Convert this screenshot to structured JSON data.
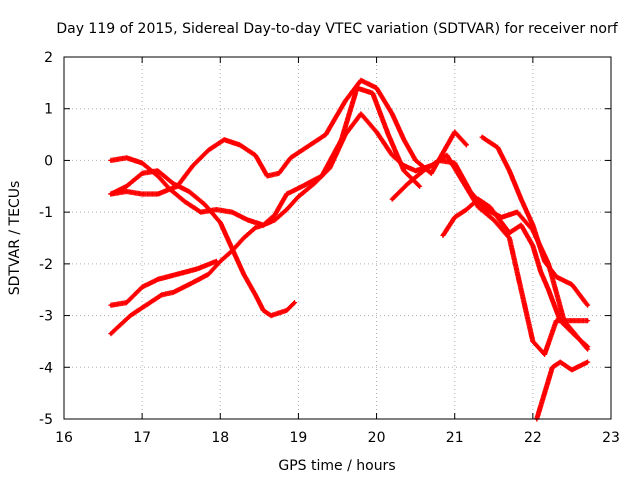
{
  "chart_data": {
    "type": "scatter",
    "title": "Day 119 of 2015, Sidereal Day-to-day VTEC variation (SDTVAR) for receiver norf",
    "xlabel": "GPS time / hours",
    "ylabel": "SDTVAR / TECUs",
    "xlim": [
      16,
      23
    ],
    "ylim": [
      -5,
      2
    ],
    "xticks": [
      16,
      17,
      18,
      19,
      20,
      21,
      22,
      23
    ],
    "yticks": [
      -5,
      -4,
      -3,
      -2,
      -1,
      0,
      1,
      2
    ],
    "xtick_labels": [
      "16",
      "17",
      "18",
      "19",
      "20",
      "21",
      "22",
      "23"
    ],
    "ytick_labels": [
      "-5",
      "-4",
      "-3",
      "-2",
      "-1",
      "0",
      "1",
      "2"
    ],
    "grid": true,
    "marker": "+",
    "marker_color": "#ff0000",
    "series": [
      {
        "name": "s1",
        "x": [
          16.6,
          16.8,
          17.0,
          17.2,
          17.35,
          17.55,
          17.75,
          17.95,
          18.15,
          18.35,
          18.55,
          18.7,
          18.85,
          19.0,
          19.2,
          19.4,
          19.6,
          19.8,
          20.0,
          20.2,
          20.35,
          20.5,
          20.7,
          20.9,
          21.1,
          21.3,
          21.5,
          21.7,
          21.85,
          22.0,
          22.15,
          22.3,
          22.5,
          22.7
        ],
        "y": [
          0.0,
          0.05,
          -0.05,
          -0.3,
          -0.55,
          -0.8,
          -1.0,
          -0.95,
          -1.0,
          -1.15,
          -1.25,
          -1.15,
          -0.95,
          -0.7,
          -0.45,
          -0.15,
          0.5,
          0.9,
          0.55,
          0.1,
          -0.1,
          -0.2,
          -0.1,
          0.1,
          -0.4,
          -0.9,
          -1.15,
          -1.5,
          -2.5,
          -3.5,
          -3.75,
          -3.1,
          -3.1,
          -3.1
        ]
      },
      {
        "name": "s2",
        "x": [
          16.6,
          16.8,
          17.0,
          17.2,
          17.45,
          17.65,
          17.85,
          18.05,
          18.25,
          18.45,
          18.6,
          18.75,
          18.9,
          19.1,
          19.35,
          19.6,
          19.8,
          20.0,
          20.2,
          20.35,
          20.5,
          20.7,
          20.85,
          21.0,
          21.15
        ],
        "y": [
          -0.65,
          -0.6,
          -0.65,
          -0.65,
          -0.5,
          -0.1,
          0.2,
          0.4,
          0.3,
          0.1,
          -0.3,
          -0.25,
          0.05,
          0.25,
          0.5,
          1.15,
          1.55,
          1.4,
          0.9,
          0.4,
          0.0,
          -0.25,
          0.15,
          0.55,
          0.3
        ]
      },
      {
        "name": "s3",
        "x": [
          16.6,
          16.8,
          17.0,
          17.2,
          17.4,
          17.6,
          17.8,
          18.0,
          18.15,
          18.3,
          18.45,
          18.55,
          18.65,
          18.75,
          18.85,
          18.95
        ],
        "y": [
          -0.65,
          -0.5,
          -0.25,
          -0.2,
          -0.45,
          -0.6,
          -0.85,
          -1.2,
          -1.7,
          -2.2,
          -2.6,
          -2.9,
          -3.0,
          -2.95,
          -2.9,
          -2.75
        ]
      },
      {
        "name": "s4",
        "x": [
          16.6,
          16.8,
          17.0,
          17.2,
          17.45,
          17.7,
          17.95
        ],
        "y": [
          -2.8,
          -2.75,
          -2.45,
          -2.3,
          -2.2,
          -2.1,
          -1.95
        ]
      },
      {
        "name": "s5",
        "x": [
          16.6,
          16.85,
          17.05,
          17.25,
          17.4,
          17.6,
          17.85,
          18.0,
          18.15,
          18.3,
          18.45,
          18.55,
          18.7,
          18.85,
          19.05,
          19.3,
          19.55,
          19.75,
          19.95,
          20.15,
          20.35,
          20.55
        ],
        "y": [
          -3.35,
          -3.0,
          -2.8,
          -2.6,
          -2.55,
          -2.4,
          -2.2,
          -1.95,
          -1.75,
          -1.5,
          -1.3,
          -1.25,
          -1.05,
          -0.65,
          -0.5,
          -0.3,
          0.4,
          1.4,
          1.3,
          0.5,
          -0.2,
          -0.5
        ]
      },
      {
        "name": "s6",
        "x": [
          20.2,
          20.4,
          20.6,
          20.8,
          21.0,
          21.2,
          21.4,
          21.6,
          21.8,
          22.0,
          22.2,
          22.4,
          22.7
        ],
        "y": [
          -0.75,
          -0.45,
          -0.2,
          0.0,
          -0.05,
          -0.6,
          -0.95,
          -1.1,
          -1.0,
          -1.35,
          -2.0,
          -3.1,
          -3.65
        ]
      },
      {
        "name": "s7",
        "x": [
          20.85,
          21.0,
          21.15,
          21.3,
          21.45,
          21.55,
          21.7,
          21.85,
          22.0,
          22.1,
          22.2,
          22.35,
          22.55,
          22.7
        ],
        "y": [
          -1.45,
          -1.1,
          -0.95,
          -0.75,
          -0.9,
          -1.1,
          -1.4,
          -1.25,
          -1.65,
          -2.15,
          -2.5,
          -3.1,
          -3.4,
          -3.6
        ]
      },
      {
        "name": "s8",
        "x": [
          21.35,
          21.55,
          21.7,
          21.85,
          22.0,
          22.15,
          22.3,
          22.5,
          22.7
        ],
        "y": [
          0.45,
          0.25,
          -0.2,
          -0.75,
          -1.25,
          -1.95,
          -2.25,
          -2.4,
          -2.8
        ]
      },
      {
        "name": "s9",
        "x": [
          22.05,
          22.15,
          22.25,
          22.35,
          22.5,
          22.7
        ],
        "y": [
          -5.0,
          -4.5,
          -4.0,
          -3.9,
          -4.05,
          -3.9
        ]
      }
    ]
  }
}
